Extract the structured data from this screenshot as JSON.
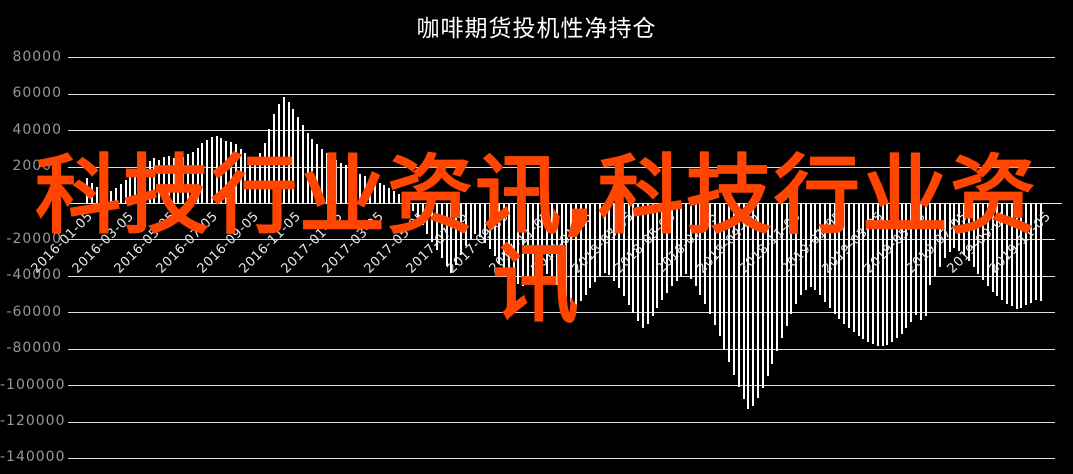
{
  "page": {
    "background": "#000000"
  },
  "chart": {
    "title": "咖啡期货投机性净持仓",
    "watermark": {
      "text": "科技行业资讯,科技行业资讯",
      "line1": "科技行业资讯,科技行业资",
      "line2": "讯",
      "color": "#FF4500"
    },
    "colors": {
      "background": "#000000",
      "bar": "#FFFFFF",
      "gridline": "#DCDCDC",
      "y_label": "#979797",
      "x_label": "#E8E8E8",
      "title": "#FFFFFF",
      "watermark": "#FF4500"
    }
  },
  "chart_data": {
    "type": "bar",
    "title": "咖啡期货投机性净持仓",
    "xlabel": "",
    "ylabel": "",
    "grid": "horizontal",
    "legend": "none",
    "bar_color": "#FFFFFF",
    "ylim": [
      -140000,
      80000
    ],
    "ytick_interval": 20000,
    "yticks": [
      80000,
      60000,
      40000,
      20000,
      0,
      -20000,
      -40000,
      -60000,
      -80000,
      -100000,
      -120000,
      -140000
    ],
    "xtick_labels": [
      "2016-01-05",
      "2016-03-05",
      "2016-05-05",
      "2016-07-05",
      "2016-09-05",
      "2016-11-05",
      "2017-01-05",
      "2017-03-05",
      "2017-05-05",
      "2017-07-05",
      "2017-09-05",
      "2017-11-05",
      "2018-01-05",
      "2018-03-05",
      "2018-05-05",
      "2018-07-05",
      "2018-09-05",
      "2018-11-05",
      "2019-01-05",
      "2019-03-05",
      "2019-05-05",
      "2019-07-05",
      "2019-09-05",
      "2019-11-05"
    ],
    "x": [
      "2016-01-05",
      "2016-01-12",
      "2016-01-19",
      "2016-01-26",
      "2016-02-02",
      "2016-02-09",
      "2016-02-16",
      "2016-02-23",
      "2016-03-01",
      "2016-03-08",
      "2016-03-15",
      "2016-03-22",
      "2016-03-29",
      "2016-04-05",
      "2016-04-12",
      "2016-04-19",
      "2016-04-26",
      "2016-05-03",
      "2016-05-10",
      "2016-05-17",
      "2016-05-24",
      "2016-05-31",
      "2016-06-07",
      "2016-06-14",
      "2016-06-21",
      "2016-06-28",
      "2016-07-05",
      "2016-07-12",
      "2016-07-19",
      "2016-07-26",
      "2016-08-02",
      "2016-08-09",
      "2016-08-16",
      "2016-08-23",
      "2016-08-30",
      "2016-09-06",
      "2016-09-13",
      "2016-09-20",
      "2016-09-27",
      "2016-10-04",
      "2016-10-11",
      "2016-10-18",
      "2016-10-25",
      "2016-11-01",
      "2016-11-08",
      "2016-11-15",
      "2016-11-22",
      "2016-11-29",
      "2016-12-06",
      "2016-12-13",
      "2016-12-20",
      "2016-12-27",
      "2017-01-03",
      "2017-01-10",
      "2017-01-17",
      "2017-01-24",
      "2017-01-31",
      "2017-02-07",
      "2017-02-14",
      "2017-02-21",
      "2017-02-28",
      "2017-03-07",
      "2017-03-14",
      "2017-03-21",
      "2017-03-28",
      "2017-04-04",
      "2017-04-11",
      "2017-04-18",
      "2017-04-25",
      "2017-05-02",
      "2017-05-09",
      "2017-05-16",
      "2017-05-23",
      "2017-05-30",
      "2017-06-06",
      "2017-06-13",
      "2017-06-20",
      "2017-06-27",
      "2017-07-04",
      "2017-07-11",
      "2017-07-18",
      "2017-07-25",
      "2017-08-01",
      "2017-08-08",
      "2017-08-15",
      "2017-08-22",
      "2017-08-29",
      "2017-09-05",
      "2017-09-12",
      "2017-09-19",
      "2017-09-26",
      "2017-10-03",
      "2017-10-10",
      "2017-10-17",
      "2017-10-24",
      "2017-10-31",
      "2017-11-07",
      "2017-11-14",
      "2017-11-21",
      "2017-11-28",
      "2017-12-05",
      "2017-12-12",
      "2017-12-19",
      "2017-12-26",
      "2018-01-02",
      "2018-01-09",
      "2018-01-16",
      "2018-01-23",
      "2018-01-30",
      "2018-02-06",
      "2018-02-13",
      "2018-02-20",
      "2018-02-27",
      "2018-03-06",
      "2018-03-13",
      "2018-03-20",
      "2018-03-27",
      "2018-04-03",
      "2018-04-10",
      "2018-04-17",
      "2018-04-24",
      "2018-05-01",
      "2018-05-08",
      "2018-05-15",
      "2018-05-22",
      "2018-05-29",
      "2018-06-05",
      "2018-06-12",
      "2018-06-19",
      "2018-06-26",
      "2018-07-03",
      "2018-07-10",
      "2018-07-17",
      "2018-07-24",
      "2018-07-31",
      "2018-08-07",
      "2018-08-14",
      "2018-08-21",
      "2018-08-28",
      "2018-09-04",
      "2018-09-11",
      "2018-09-18",
      "2018-09-25",
      "2018-10-02",
      "2018-10-09",
      "2018-10-16",
      "2018-10-23",
      "2018-10-30",
      "2018-11-06",
      "2018-11-13",
      "2018-11-20",
      "2018-11-27",
      "2018-12-04",
      "2018-12-11",
      "2018-12-18",
      "2018-12-25",
      "2019-01-01",
      "2019-01-08",
      "2019-01-15",
      "2019-01-22",
      "2019-01-29",
      "2019-02-05",
      "2019-02-12",
      "2019-02-19",
      "2019-02-26",
      "2019-03-05",
      "2019-03-12",
      "2019-03-19",
      "2019-03-26",
      "2019-04-02",
      "2019-04-09",
      "2019-04-16",
      "2019-04-23",
      "2019-04-30",
      "2019-05-07",
      "2019-05-14",
      "2019-05-21",
      "2019-05-28",
      "2019-06-04",
      "2019-06-11",
      "2019-06-18",
      "2019-06-25",
      "2019-07-02",
      "2019-07-09",
      "2019-07-16",
      "2019-07-23",
      "2019-07-30",
      "2019-08-06",
      "2019-08-13",
      "2019-08-20",
      "2019-08-27",
      "2019-09-03",
      "2019-09-10",
      "2019-09-17",
      "2019-09-24",
      "2019-10-01",
      "2019-10-08",
      "2019-10-15",
      "2019-10-22",
      "2019-10-29"
    ],
    "values": [
      14000,
      11500,
      9000,
      7500,
      6500,
      7000,
      8500,
      10500,
      13000,
      15500,
      18000,
      20500,
      22000,
      23500,
      25000,
      24000,
      25500,
      26000,
      25000,
      24500,
      25500,
      27000,
      28500,
      30500,
      33000,
      35000,
      36500,
      37000,
      36000,
      34500,
      34000,
      32500,
      30000,
      27500,
      25500,
      25000,
      27500,
      33000,
      41000,
      49000,
      54500,
      58500,
      56000,
      52000,
      47500,
      43000,
      39000,
      35500,
      32500,
      30000,
      27500,
      25500,
      24000,
      22500,
      21000,
      19500,
      18000,
      16500,
      15000,
      14000,
      13000,
      11500,
      10000,
      8500,
      7000,
      5000,
      2500,
      -500,
      -4000,
      -8000,
      -12000,
      -16500,
      -21000,
      -25500,
      -30000,
      -34500,
      -38000,
      -33500,
      -28500,
      -23500,
      -19500,
      -16500,
      -18500,
      -21500,
      -25000,
      -29000,
      -33000,
      -36500,
      -39500,
      -42000,
      -44000,
      -45500,
      -44000,
      -41000,
      -38000,
      -36500,
      -38500,
      -41500,
      -45000,
      -48500,
      -51500,
      -54000,
      -55500,
      -53500,
      -50500,
      -46500,
      -43000,
      -40000,
      -38000,
      -39500,
      -42500,
      -46500,
      -51000,
      -55500,
      -60000,
      -64500,
      -68500,
      -66000,
      -62000,
      -57500,
      -53000,
      -49000,
      -45500,
      -42500,
      -40000,
      -38500,
      -41500,
      -45500,
      -50000,
      -55000,
      -60500,
      -66500,
      -73000,
      -80000,
      -87000,
      -94000,
      -101000,
      -107500,
      -113000,
      -111000,
      -107000,
      -101500,
      -95000,
      -88000,
      -81000,
      -74000,
      -67000,
      -60500,
      -55000,
      -50500,
      -47500,
      -46000,
      -47500,
      -50500,
      -54000,
      -57500,
      -60500,
      -63500,
      -66000,
      -68500,
      -70500,
      -72500,
      -74500,
      -76000,
      -77000,
      -78000,
      -78500,
      -77500,
      -76000,
      -74000,
      -71500,
      -68500,
      -65000,
      -61000,
      -64000,
      -62000,
      -45000,
      -40000,
      -35000,
      -30000,
      -26500,
      -24500,
      -26000,
      -28500,
      -31500,
      -35000,
      -38500,
      -42000,
      -45500,
      -48500,
      -51000,
      -53000,
      -55000,
      -56500,
      -58000,
      -57500,
      -56000,
      -54500,
      -53000,
      -53500
    ]
  }
}
